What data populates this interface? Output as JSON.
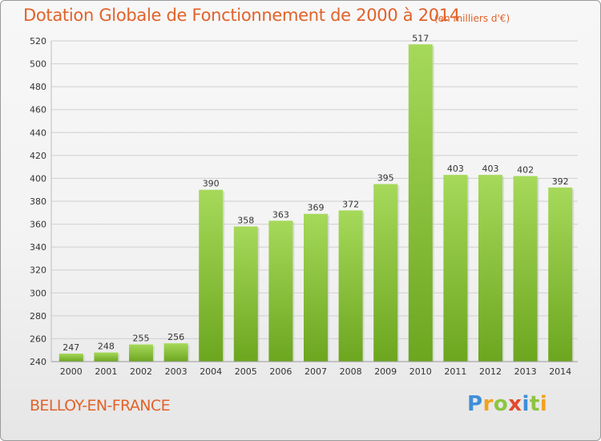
{
  "header": {
    "title": "Dotation Globale de Fonctionnement de 2000 à 2014",
    "unit": "(en milliers d'€)"
  },
  "footer": {
    "commune": "BELLOY-EN-FRANCE",
    "logo_letters": [
      "P",
      "r",
      "o",
      "x",
      "i",
      "t",
      "i"
    ]
  },
  "colors": {
    "text_accent": "#e2622a",
    "bar_light": "#a6d95a",
    "bar_dark": "#6ca61f",
    "logo": [
      "#3f8fd8",
      "#f3a21c",
      "#8cc53f",
      "#e24a2c",
      "#3f8fd8",
      "#8cc53f",
      "#f3a21c"
    ]
  },
  "chart_data": {
    "type": "bar",
    "title": "Dotation Globale de Fonctionnement de 2000 à 2014",
    "unit": "(en milliers d'€)",
    "categories": [
      "2000",
      "2001",
      "2002",
      "2003",
      "2004",
      "2005",
      "2006",
      "2007",
      "2008",
      "2009",
      "2010",
      "2011",
      "2012",
      "2013",
      "2014"
    ],
    "values": [
      247,
      248,
      255,
      256,
      390,
      358,
      363,
      369,
      372,
      395,
      517,
      403,
      403,
      402,
      392
    ],
    "ylim": [
      240,
      520
    ],
    "yticks": [
      240,
      260,
      280,
      300,
      320,
      340,
      360,
      380,
      400,
      420,
      440,
      460,
      480,
      500,
      520
    ],
    "grid": true
  }
}
